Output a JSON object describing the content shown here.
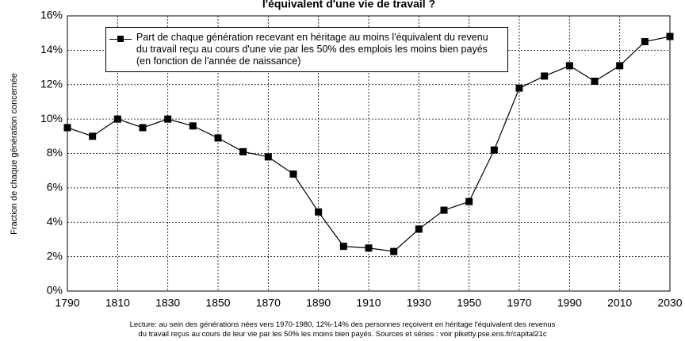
{
  "chart_data": {
    "type": "line",
    "title": "l'équivalent d'une vie de travail ?",
    "y_label": "Fraction de chaque génération concernée",
    "x": [
      1790,
      1800,
      1810,
      1820,
      1830,
      1840,
      1850,
      1860,
      1870,
      1880,
      1890,
      1900,
      1910,
      1920,
      1930,
      1940,
      1950,
      1960,
      1970,
      1980,
      1990,
      2000,
      2010,
      2020,
      2030
    ],
    "series": [
      {
        "name": "Part de chaque génération recevant en héritage au moins l'équivalent du revenu du travail reçu au cours d'une vie par les 50% des emplois les moins bien payés (en fonction de l'année de naissance)",
        "color": "#000000",
        "values": [
          9.5,
          9.0,
          10.0,
          9.5,
          10.0,
          9.6,
          8.9,
          8.1,
          7.8,
          6.8,
          4.6,
          2.6,
          2.5,
          2.3,
          3.6,
          4.7,
          5.2,
          8.2,
          11.8,
          12.5,
          13.1,
          12.2,
          13.1,
          14.5,
          14.8
        ]
      }
    ],
    "xlim": [
      1790,
      2030
    ],
    "xticks": [
      1790,
      1810,
      1830,
      1850,
      1870,
      1890,
      1910,
      1930,
      1950,
      1970,
      1990,
      2010,
      2030
    ],
    "ylim": [
      0,
      16
    ],
    "yticks": [
      {
        "value": 0,
        "label": "0%"
      },
      {
        "value": 2,
        "label": "2%"
      },
      {
        "value": 4,
        "label": "4%"
      },
      {
        "value": 6,
        "label": "6%"
      },
      {
        "value": 8,
        "label": "8%"
      },
      {
        "value": 10,
        "label": "10%"
      },
      {
        "value": 12,
        "label": "12%"
      },
      {
        "value": 14,
        "label": "14%"
      },
      {
        "value": 16,
        "label": "16%"
      }
    ],
    "grid": true,
    "note": [
      "Lecture: au sein des générations nées vers 1970-1980, 12%-14% des personnes reçoivent en héritage l'équivalent des revenus",
      "du travail reçus au cours de leur vie par les 50% les moins bien payés. Sources et séries : voir piketty.pse.ens.fr/capital21c"
    ]
  }
}
